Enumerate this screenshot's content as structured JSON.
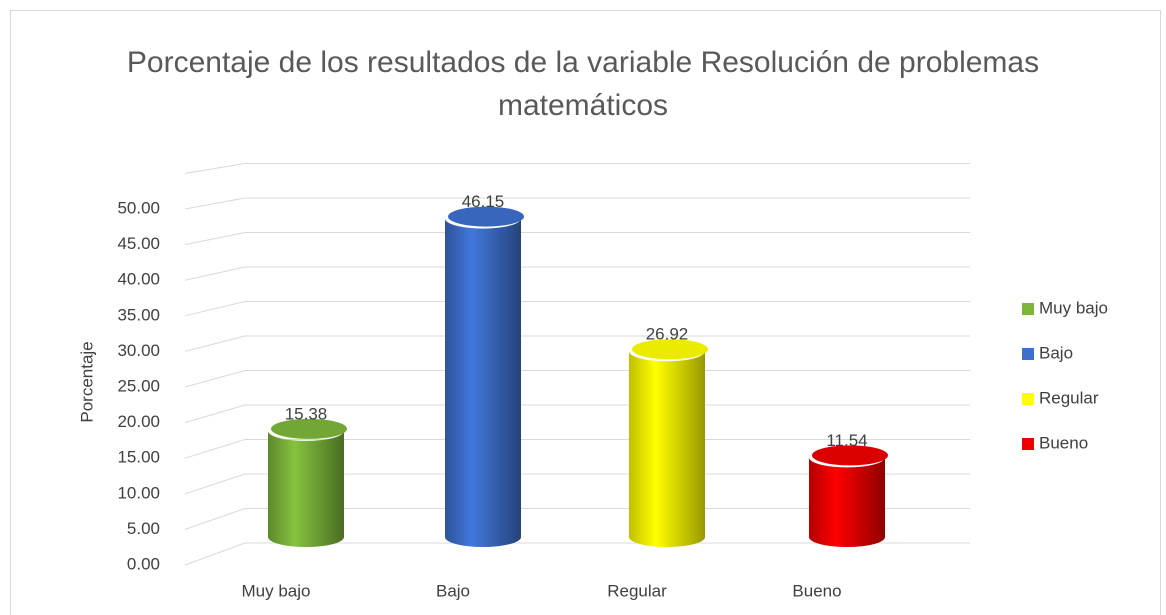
{
  "chart_data": {
    "type": "bar3d",
    "title": "Porcentaje de los resultados de la variable Resolución de problemas matemáticos",
    "y_label": "Porcentaje",
    "categories": [
      "Muy bajo",
      "Bajo",
      "Regular",
      "Bueno"
    ],
    "values": [
      15.38,
      46.15,
      26.92,
      11.54
    ],
    "colors": [
      "#7cb53a",
      "#3d6fcc",
      "#ffff00",
      "#ee0000"
    ],
    "ylim": [
      0,
      55
    ],
    "yticks": [
      {
        "value": 0,
        "label": "0.00"
      },
      {
        "value": 5,
        "label": "5.00"
      },
      {
        "value": 10,
        "label": "10.00"
      },
      {
        "value": 15,
        "label": "15.00"
      },
      {
        "value": 20,
        "label": "20.00"
      },
      {
        "value": 25,
        "label": "25.00"
      },
      {
        "value": 30,
        "label": "30.00"
      },
      {
        "value": 35,
        "label": "35.00"
      },
      {
        "value": 40,
        "label": "40.00"
      },
      {
        "value": 45,
        "label": "45.00"
      },
      {
        "value": 50,
        "label": "50.00"
      }
    ],
    "grid": true,
    "legend": "right"
  }
}
